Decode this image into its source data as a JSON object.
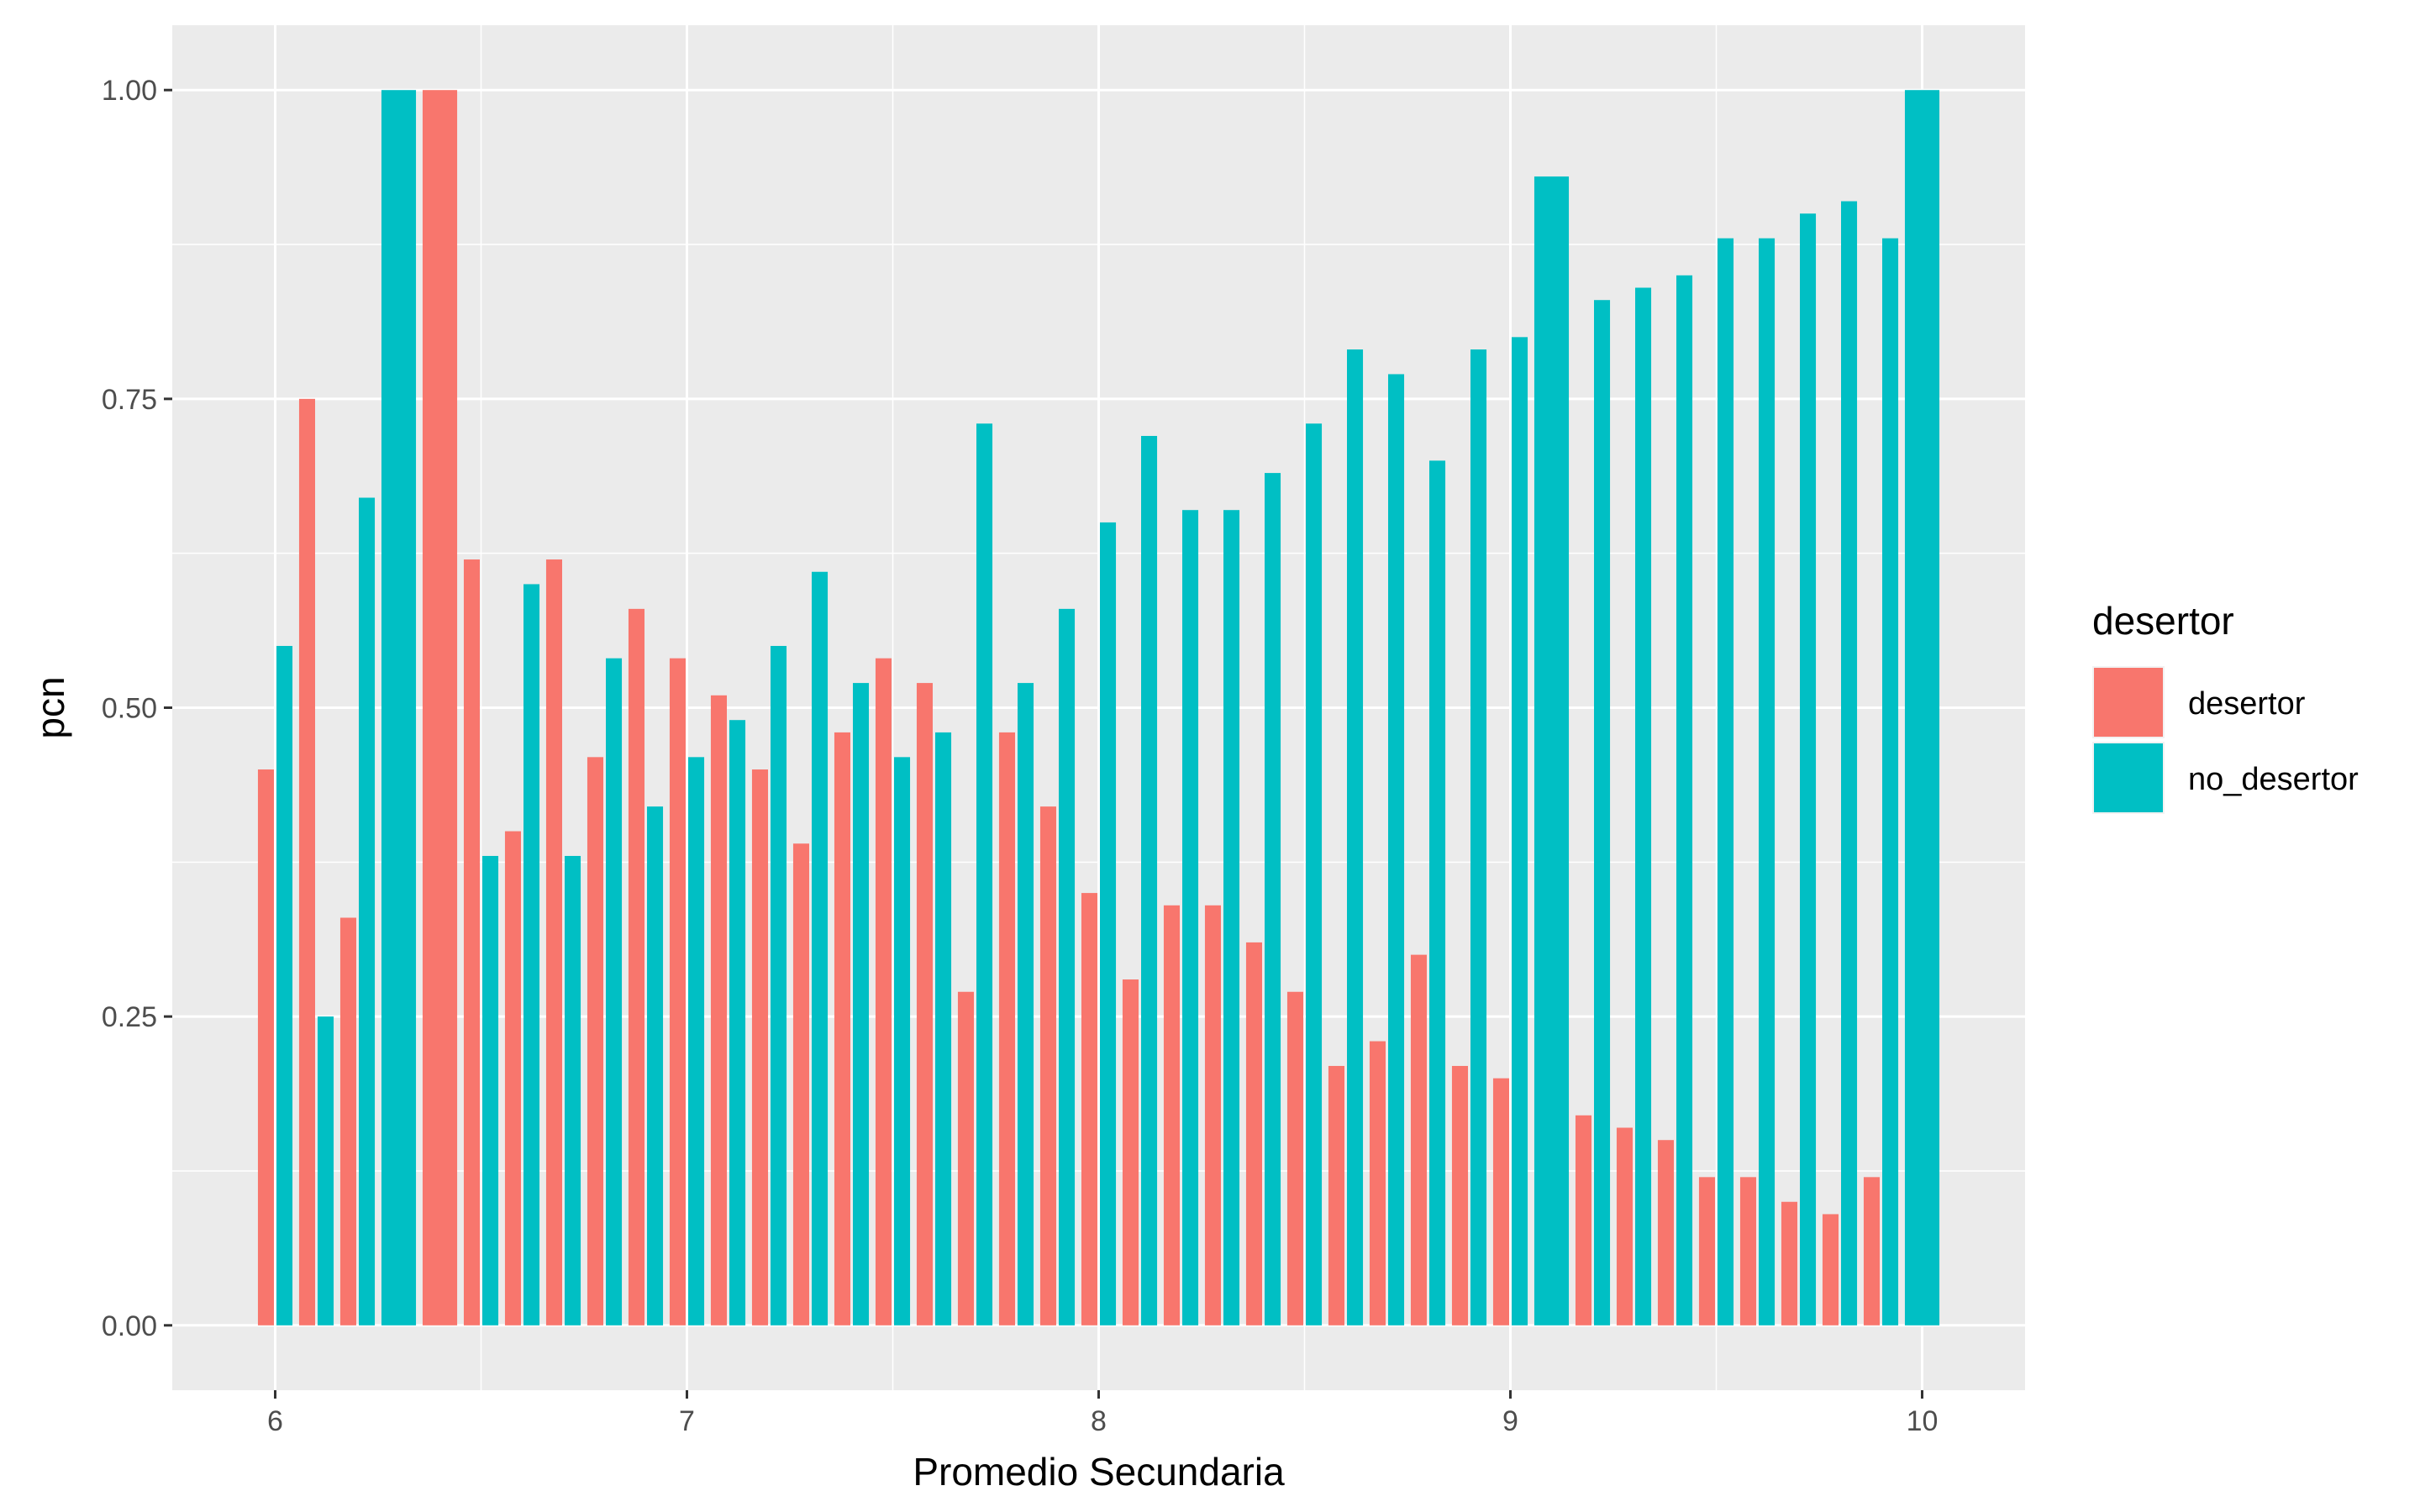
{
  "chart_data": {
    "type": "bar",
    "xlabel": "Promedio Secundaria",
    "ylabel": "pcn",
    "xlim": [
      5.75,
      10.25
    ],
    "ylim": [
      -0.0525,
      1.0525
    ],
    "x_ticks": [
      {
        "value": 6,
        "label": "6"
      },
      {
        "value": 7,
        "label": "7"
      },
      {
        "value": 8,
        "label": "8"
      },
      {
        "value": 9,
        "label": "9"
      },
      {
        "value": 10,
        "label": "10"
      }
    ],
    "y_ticks": [
      {
        "value": 0,
        "label": "0.00"
      },
      {
        "value": 0.25,
        "label": "0.25"
      },
      {
        "value": 0.5,
        "label": "0.50"
      },
      {
        "value": 0.75,
        "label": "0.75"
      },
      {
        "value": 1,
        "label": "1.00"
      }
    ],
    "legend": {
      "title": "desertor",
      "placement": "right",
      "items": [
        {
          "label": "desertor",
          "color": "#F8766D"
        },
        {
          "label": "no_desertor",
          "color": "#00BFC4"
        }
      ]
    },
    "grid": true,
    "x": [
      6.0,
      6.1,
      6.2,
      6.3,
      6.4,
      6.5,
      6.6,
      6.7,
      6.8,
      6.9,
      7.0,
      7.1,
      7.2,
      7.3,
      7.4,
      7.5,
      7.6,
      7.7,
      7.8,
      7.9,
      8.0,
      8.1,
      8.2,
      8.3,
      8.4,
      8.5,
      8.6,
      8.7,
      8.8,
      8.9,
      9.0,
      9.1,
      9.2,
      9.3,
      9.4,
      9.5,
      9.6,
      9.7,
      9.8,
      9.9,
      10.0
    ],
    "series": [
      {
        "name": "desertor",
        "color": "#F8766D",
        "values": [
          0.45,
          0.75,
          0.33,
          null,
          1.0,
          0.62,
          0.4,
          0.62,
          0.46,
          0.58,
          0.54,
          0.51,
          0.45,
          0.39,
          0.48,
          0.54,
          0.52,
          0.27,
          0.48,
          0.42,
          0.35,
          0.28,
          0.34,
          0.34,
          0.31,
          0.27,
          0.21,
          0.23,
          0.3,
          0.21,
          0.2,
          null,
          0.17,
          0.16,
          0.15,
          0.12,
          0.12,
          0.1,
          0.09,
          0.12,
          null
        ]
      },
      {
        "name": "no_desertor",
        "color": "#00BFC4",
        "values": [
          0.55,
          0.25,
          0.67,
          1.0,
          null,
          0.38,
          0.6,
          0.38,
          0.54,
          0.42,
          0.46,
          0.49,
          0.55,
          0.61,
          0.52,
          0.46,
          0.48,
          0.73,
          0.52,
          0.58,
          0.65,
          0.72,
          0.66,
          0.66,
          0.69,
          0.73,
          0.79,
          0.77,
          0.7,
          0.79,
          0.8,
          0.93,
          0.83,
          0.84,
          0.85,
          0.88,
          0.88,
          0.9,
          0.91,
          0.88,
          1.0
        ]
      }
    ]
  }
}
